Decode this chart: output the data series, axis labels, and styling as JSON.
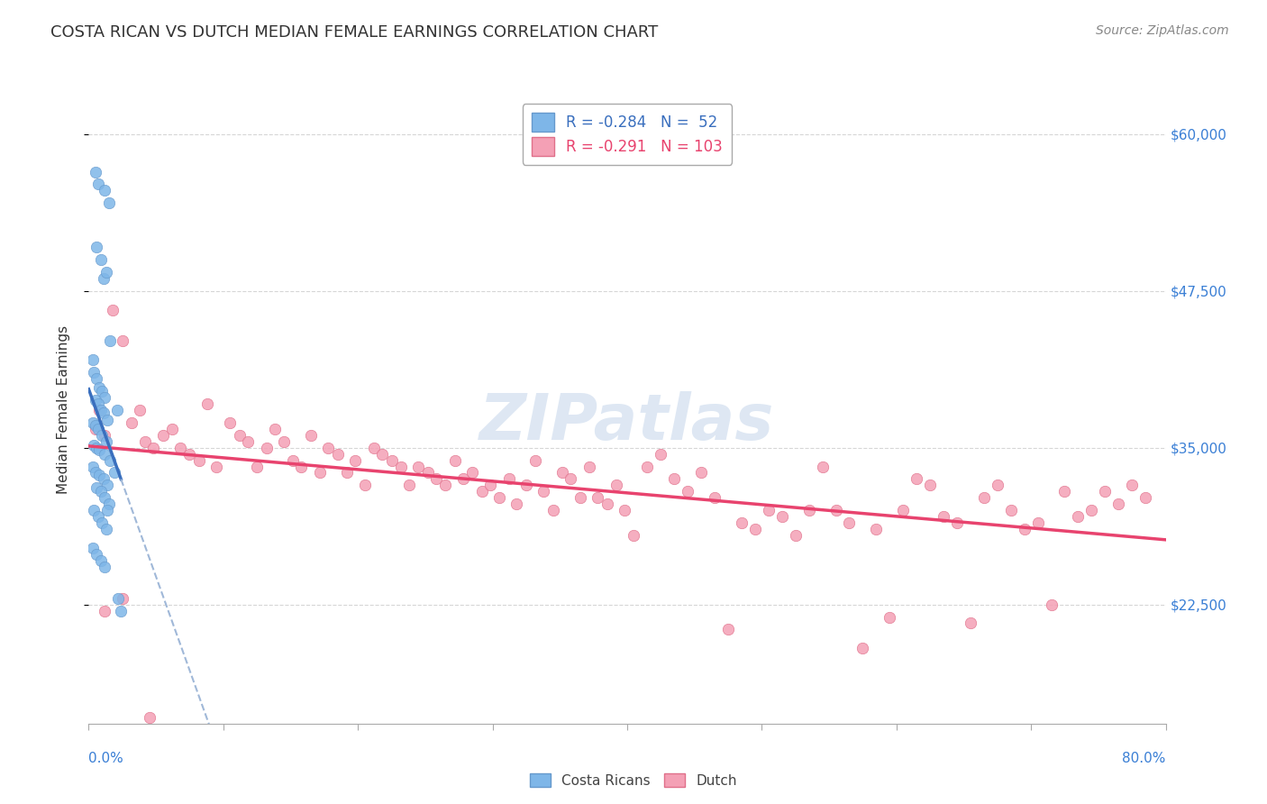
{
  "title": "COSTA RICAN VS DUTCH MEDIAN FEMALE EARNINGS CORRELATION CHART",
  "source": "Source: ZipAtlas.com",
  "ylabel": "Median Female Earnings",
  "xmin": 0.0,
  "xmax": 0.8,
  "ymin": 13000,
  "ymax": 63000,
  "legend_r_blue": "-0.284",
  "legend_n_blue": "52",
  "legend_r_pink": "-0.291",
  "legend_n_pink": "103",
  "blue_color": "#7eb6e8",
  "pink_color": "#f4a0b5",
  "trend_blue_color": "#3a6fbe",
  "trend_pink_color": "#e8436e",
  "trend_dashed_color": "#a0b8d8",
  "watermark": "ZIPatlas",
  "watermark_color": "#c8d8ec",
  "blue_dots_x": [
    0.005,
    0.007,
    0.012,
    0.015,
    0.006,
    0.009,
    0.011,
    0.013,
    0.016,
    0.003,
    0.004,
    0.006,
    0.008,
    0.01,
    0.012,
    0.005,
    0.007,
    0.009,
    0.011,
    0.014,
    0.003,
    0.005,
    0.007,
    0.01,
    0.013,
    0.004,
    0.006,
    0.008,
    0.012,
    0.016,
    0.003,
    0.005,
    0.008,
    0.011,
    0.014,
    0.006,
    0.009,
    0.012,
    0.015,
    0.004,
    0.007,
    0.01,
    0.013,
    0.003,
    0.006,
    0.009,
    0.012,
    0.021,
    0.014,
    0.019,
    0.022,
    0.024
  ],
  "blue_dots_y": [
    57000,
    56000,
    55500,
    54500,
    51000,
    50000,
    48500,
    49000,
    43500,
    42000,
    41000,
    40500,
    39800,
    39500,
    39000,
    38800,
    38500,
    38000,
    37800,
    37200,
    37000,
    36800,
    36500,
    36000,
    35500,
    35200,
    35000,
    34800,
    34500,
    34000,
    33500,
    33000,
    32800,
    32500,
    32000,
    31800,
    31500,
    31000,
    30500,
    30000,
    29500,
    29000,
    28500,
    27000,
    26500,
    26000,
    25500,
    38000,
    30000,
    33000,
    23000,
    22000
  ],
  "pink_dots_x": [
    0.005,
    0.008,
    0.012,
    0.018,
    0.025,
    0.032,
    0.038,
    0.042,
    0.048,
    0.055,
    0.062,
    0.068,
    0.075,
    0.082,
    0.088,
    0.095,
    0.105,
    0.112,
    0.118,
    0.125,
    0.132,
    0.138,
    0.145,
    0.152,
    0.158,
    0.165,
    0.172,
    0.178,
    0.185,
    0.192,
    0.198,
    0.205,
    0.212,
    0.218,
    0.225,
    0.232,
    0.238,
    0.245,
    0.252,
    0.258,
    0.265,
    0.272,
    0.278,
    0.285,
    0.292,
    0.298,
    0.305,
    0.312,
    0.318,
    0.325,
    0.332,
    0.338,
    0.345,
    0.352,
    0.358,
    0.365,
    0.372,
    0.378,
    0.385,
    0.392,
    0.398,
    0.405,
    0.415,
    0.425,
    0.435,
    0.445,
    0.455,
    0.465,
    0.475,
    0.485,
    0.495,
    0.505,
    0.515,
    0.525,
    0.535,
    0.545,
    0.555,
    0.565,
    0.575,
    0.585,
    0.595,
    0.605,
    0.615,
    0.625,
    0.635,
    0.645,
    0.655,
    0.665,
    0.675,
    0.685,
    0.695,
    0.705,
    0.715,
    0.725,
    0.735,
    0.745,
    0.755,
    0.765,
    0.775,
    0.785,
    0.012,
    0.025,
    0.045
  ],
  "pink_dots_y": [
    36500,
    38000,
    36000,
    46000,
    43500,
    37000,
    38000,
    35500,
    35000,
    36000,
    36500,
    35000,
    34500,
    34000,
    38500,
    33500,
    37000,
    36000,
    35500,
    33500,
    35000,
    36500,
    35500,
    34000,
    33500,
    36000,
    33000,
    35000,
    34500,
    33000,
    34000,
    32000,
    35000,
    34500,
    34000,
    33500,
    32000,
    33500,
    33000,
    32500,
    32000,
    34000,
    32500,
    33000,
    31500,
    32000,
    31000,
    32500,
    30500,
    32000,
    34000,
    31500,
    30000,
    33000,
    32500,
    31000,
    33500,
    31000,
    30500,
    32000,
    30000,
    28000,
    33500,
    34500,
    32500,
    31500,
    33000,
    31000,
    20500,
    29000,
    28500,
    30000,
    29500,
    28000,
    30000,
    33500,
    30000,
    29000,
    19000,
    28500,
    21500,
    30000,
    32500,
    32000,
    29500,
    29000,
    21000,
    31000,
    32000,
    30000,
    28500,
    29000,
    22500,
    31500,
    29500,
    30000,
    31500,
    30500,
    32000,
    31000,
    22000,
    23000,
    13500
  ]
}
